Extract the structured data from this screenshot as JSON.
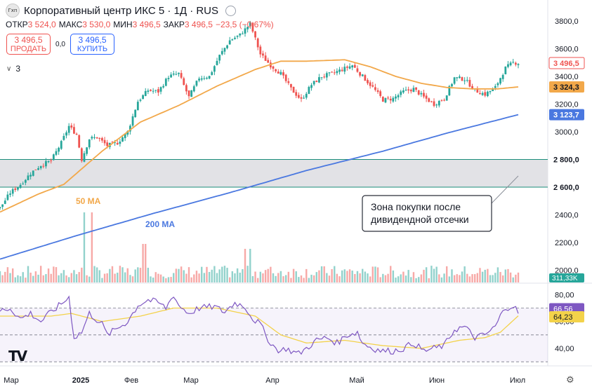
{
  "header": {
    "title": "Корпоративный центр ИКС 5 · 1Д · RUS",
    "logo_text": "Гхп",
    "ohlc": [
      {
        "label": "ОТКР",
        "value": "3 524,0"
      },
      {
        "label": "МАКС",
        "value": "3 530,0"
      },
      {
        "label": "МИН",
        "value": "3 496,5"
      },
      {
        "label": "ЗАКР",
        "value": "3 496,5"
      },
      {
        "label": "",
        "value": "−23,5 (−0,67%)"
      }
    ]
  },
  "trade": {
    "sell_price": "3 496,5",
    "sell_label": "ПРОДАТЬ",
    "spread": "0,0",
    "buy_price": "3 496,5",
    "buy_label": "КУПИТЬ"
  },
  "indicators_toggle": {
    "count": "3"
  },
  "colors": {
    "up": "#26a69a",
    "down": "#ef5350",
    "ma50": "#f2a84a",
    "ma200": "#4a78e0",
    "rsi": "#7e57c2",
    "rsi_ma": "#f3d24a",
    "zone_line": "#1a8c7a",
    "zone_fill": "#e2e2e6"
  },
  "chart_data": {
    "type": "candlestick",
    "title": "Корпоративный центр ИКС 5 · 1Д · RUS",
    "price_axis": {
      "ticks": [
        "3800,0",
        "3600,0",
        "3400,0",
        "3200,0",
        "3000,0",
        "2800,0",
        "2600,0",
        "2400,0",
        "2200,0",
        "2000,0"
      ],
      "range": [
        2000,
        3850
      ]
    },
    "x_axis": {
      "labels": [
        "Мар",
        "2025",
        "Фев",
        "Мар",
        "Апр",
        "Май",
        "Июн",
        "Июл"
      ]
    },
    "price_anchors": [
      [
        0,
        2450
      ],
      [
        4,
        2560
      ],
      [
        8,
        2620
      ],
      [
        12,
        2700
      ],
      [
        16,
        2760
      ],
      [
        20,
        2790
      ],
      [
        24,
        2920
      ],
      [
        27,
        3040
      ],
      [
        30,
        2980
      ],
      [
        32,
        2800
      ],
      [
        35,
        2950
      ],
      [
        38,
        2960
      ],
      [
        42,
        2900
      ],
      [
        46,
        2920
      ],
      [
        50,
        3000
      ],
      [
        54,
        3220
      ],
      [
        58,
        3300
      ],
      [
        62,
        3290
      ],
      [
        66,
        3400
      ],
      [
        70,
        3420
      ],
      [
        74,
        3250
      ],
      [
        78,
        3390
      ],
      [
        82,
        3400
      ],
      [
        86,
        3550
      ],
      [
        90,
        3660
      ],
      [
        94,
        3700
      ],
      [
        98,
        3780
      ],
      [
        102,
        3560
      ],
      [
        106,
        3480
      ],
      [
        110,
        3420
      ],
      [
        114,
        3310
      ],
      [
        118,
        3230
      ],
      [
        122,
        3340
      ],
      [
        126,
        3400
      ],
      [
        130,
        3420
      ],
      [
        134,
        3450
      ],
      [
        138,
        3480
      ],
      [
        142,
        3400
      ],
      [
        146,
        3320
      ],
      [
        150,
        3230
      ],
      [
        154,
        3240
      ],
      [
        158,
        3290
      ],
      [
        162,
        3310
      ],
      [
        166,
        3250
      ],
      [
        170,
        3200
      ],
      [
        174,
        3240
      ],
      [
        178,
        3390
      ],
      [
        182,
        3380
      ],
      [
        186,
        3300
      ],
      [
        190,
        3270
      ],
      [
        194,
        3320
      ],
      [
        198,
        3460
      ],
      [
        201,
        3500
      ],
      [
        203,
        3496.5
      ]
    ],
    "ma50_anchors": [
      [
        0,
        2420
      ],
      [
        15,
        2550
      ],
      [
        25,
        2620
      ],
      [
        40,
        2860
      ],
      [
        55,
        3070
      ],
      [
        70,
        3190
      ],
      [
        85,
        3330
      ],
      [
        100,
        3450
      ],
      [
        110,
        3510
      ],
      [
        120,
        3510
      ],
      [
        135,
        3520
      ],
      [
        145,
        3470
      ],
      [
        155,
        3400
      ],
      [
        165,
        3350
      ],
      [
        175,
        3320
      ],
      [
        185,
        3310
      ],
      [
        195,
        3310
      ],
      [
        203,
        3324.3
      ]
    ],
    "ma200_anchors": [
      [
        0,
        2080
      ],
      [
        30,
        2250
      ],
      [
        60,
        2410
      ],
      [
        90,
        2560
      ],
      [
        120,
        2720
      ],
      [
        150,
        2860
      ],
      [
        175,
        2990
      ],
      [
        203,
        3123.7
      ]
    ],
    "volume_marker": "311,33K",
    "price_labels": [
      {
        "text": "3 496,5",
        "role": "last"
      },
      {
        "text": "3 324,3",
        "role": "ma50"
      },
      {
        "text": "3 123,7",
        "role": "ma200"
      },
      {
        "text": "2 800,0",
        "role": "zone_top"
      },
      {
        "text": "2 600,0",
        "role": "zone_bottom"
      }
    ],
    "zone": {
      "top": 2800,
      "bottom": 2600
    },
    "annotations": {
      "ma50": "50 MA",
      "ma200": "200 MA",
      "callout": [
        "Зона покупки после",
        "дивидендной отсечки"
      ]
    },
    "rsi": {
      "ticks": [
        "80,00",
        "60,00",
        "40,00"
      ],
      "range": [
        28,
        88
      ],
      "bands": [
        70,
        50,
        30
      ],
      "anchors": [
        [
          0,
          68
        ],
        [
          4,
          70
        ],
        [
          8,
          62
        ],
        [
          12,
          66
        ],
        [
          16,
          60
        ],
        [
          20,
          67
        ],
        [
          24,
          73
        ],
        [
          27,
          78
        ],
        [
          29,
          48
        ],
        [
          32,
          52
        ],
        [
          35,
          66
        ],
        [
          40,
          58
        ],
        [
          42,
          50
        ],
        [
          46,
          55
        ],
        [
          50,
          60
        ],
        [
          54,
          72
        ],
        [
          58,
          76
        ],
        [
          62,
          74
        ],
        [
          65,
          70
        ],
        [
          68,
          80
        ],
        [
          70,
          72
        ],
        [
          74,
          66
        ],
        [
          78,
          70
        ],
        [
          84,
          71
        ],
        [
          88,
          67
        ],
        [
          92,
          74
        ],
        [
          96,
          71
        ],
        [
          99,
          62
        ],
        [
          102,
          58
        ],
        [
          104,
          50
        ],
        [
          106,
          44
        ],
        [
          108,
          40
        ],
        [
          110,
          38
        ],
        [
          112,
          40
        ],
        [
          114,
          38
        ],
        [
          117,
          36
        ],
        [
          120,
          40
        ],
        [
          124,
          46
        ],
        [
          128,
          48
        ],
        [
          132,
          44
        ],
        [
          136,
          50
        ],
        [
          140,
          52
        ],
        [
          142,
          44
        ],
        [
          146,
          40
        ],
        [
          150,
          38
        ],
        [
          154,
          38
        ],
        [
          158,
          40
        ],
        [
          162,
          44
        ],
        [
          166,
          38
        ],
        [
          170,
          40
        ],
        [
          174,
          42
        ],
        [
          178,
          54
        ],
        [
          182,
          56
        ],
        [
          186,
          48
        ],
        [
          190,
          50
        ],
        [
          194,
          56
        ],
        [
          196,
          64
        ],
        [
          198,
          70
        ],
        [
          201,
          72
        ],
        [
          203,
          66.56
        ]
      ],
      "ma_anchors": [
        [
          0,
          64
        ],
        [
          20,
          64
        ],
        [
          28,
          66
        ],
        [
          40,
          60
        ],
        [
          55,
          64
        ],
        [
          68,
          70
        ],
        [
          85,
          70
        ],
        [
          100,
          64
        ],
        [
          110,
          50
        ],
        [
          120,
          44
        ],
        [
          135,
          46
        ],
        [
          150,
          42
        ],
        [
          165,
          40
        ],
        [
          180,
          46
        ],
        [
          190,
          48
        ],
        [
          196,
          52
        ],
        [
          203,
          64.23
        ]
      ],
      "labels": [
        "66,56",
        "64,23"
      ]
    }
  }
}
